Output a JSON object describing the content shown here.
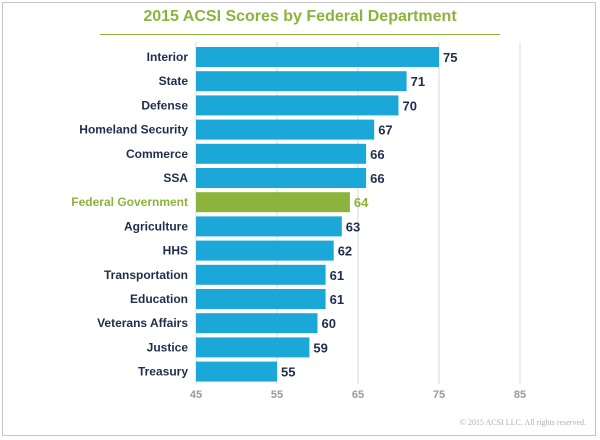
{
  "chart_data": {
    "type": "bar",
    "orientation": "horizontal",
    "title": "2015 ACSI Scores by Federal Department",
    "categories": [
      "Interior",
      "State",
      "Defense",
      "Homeland Security",
      "Commerce",
      "SSA",
      "Federal Government",
      "Agriculture",
      "HHS",
      "Transportation",
      "Education",
      "Veterans Affairs",
      "Justice",
      "Treasury"
    ],
    "values": [
      75,
      71,
      70,
      67,
      66,
      66,
      64,
      63,
      62,
      61,
      61,
      60,
      59,
      55
    ],
    "highlight": "Federal Government",
    "xlim": [
      45,
      90
    ],
    "xticks": [
      45,
      55,
      65,
      75,
      85
    ],
    "grid": true,
    "xlabel": "",
    "ylabel": ""
  },
  "colors": {
    "bar": "#1ba8d8",
    "highlight_bar": "#8cb43c",
    "label": "#1f2d4d",
    "highlight_label": "#8cb43c",
    "grid": "#d8d8d8",
    "tick": "#9a9a9a"
  },
  "footer": "© 2015 ACSI LLC. All rights reserved."
}
